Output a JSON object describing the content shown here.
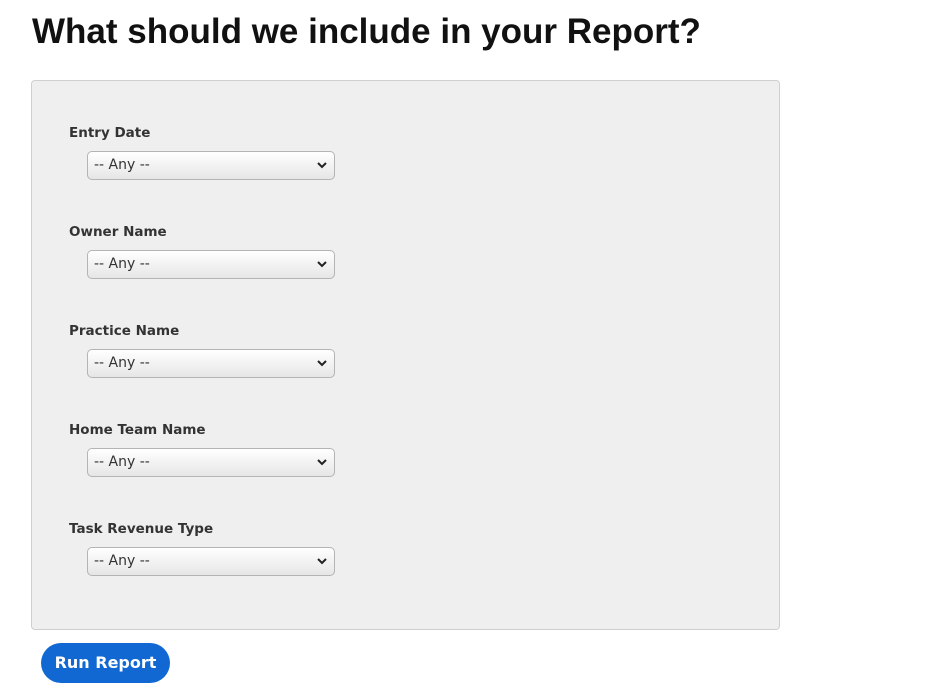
{
  "page": {
    "title": "What should we include in your Report?"
  },
  "fields": [
    {
      "label": "Entry Date",
      "value": "-- Any --"
    },
    {
      "label": "Owner Name",
      "value": "-- Any --"
    },
    {
      "label": "Practice Name",
      "value": "-- Any --"
    },
    {
      "label": "Home Team Name",
      "value": "-- Any --"
    },
    {
      "label": "Task Revenue Type",
      "value": "-- Any --"
    }
  ],
  "actions": {
    "run_report_label": "Run Report"
  },
  "colors": {
    "accent": "#1168d3",
    "panel_bg": "#efefef"
  },
  "icons": {
    "select_arrow": "chevron-down-icon"
  }
}
